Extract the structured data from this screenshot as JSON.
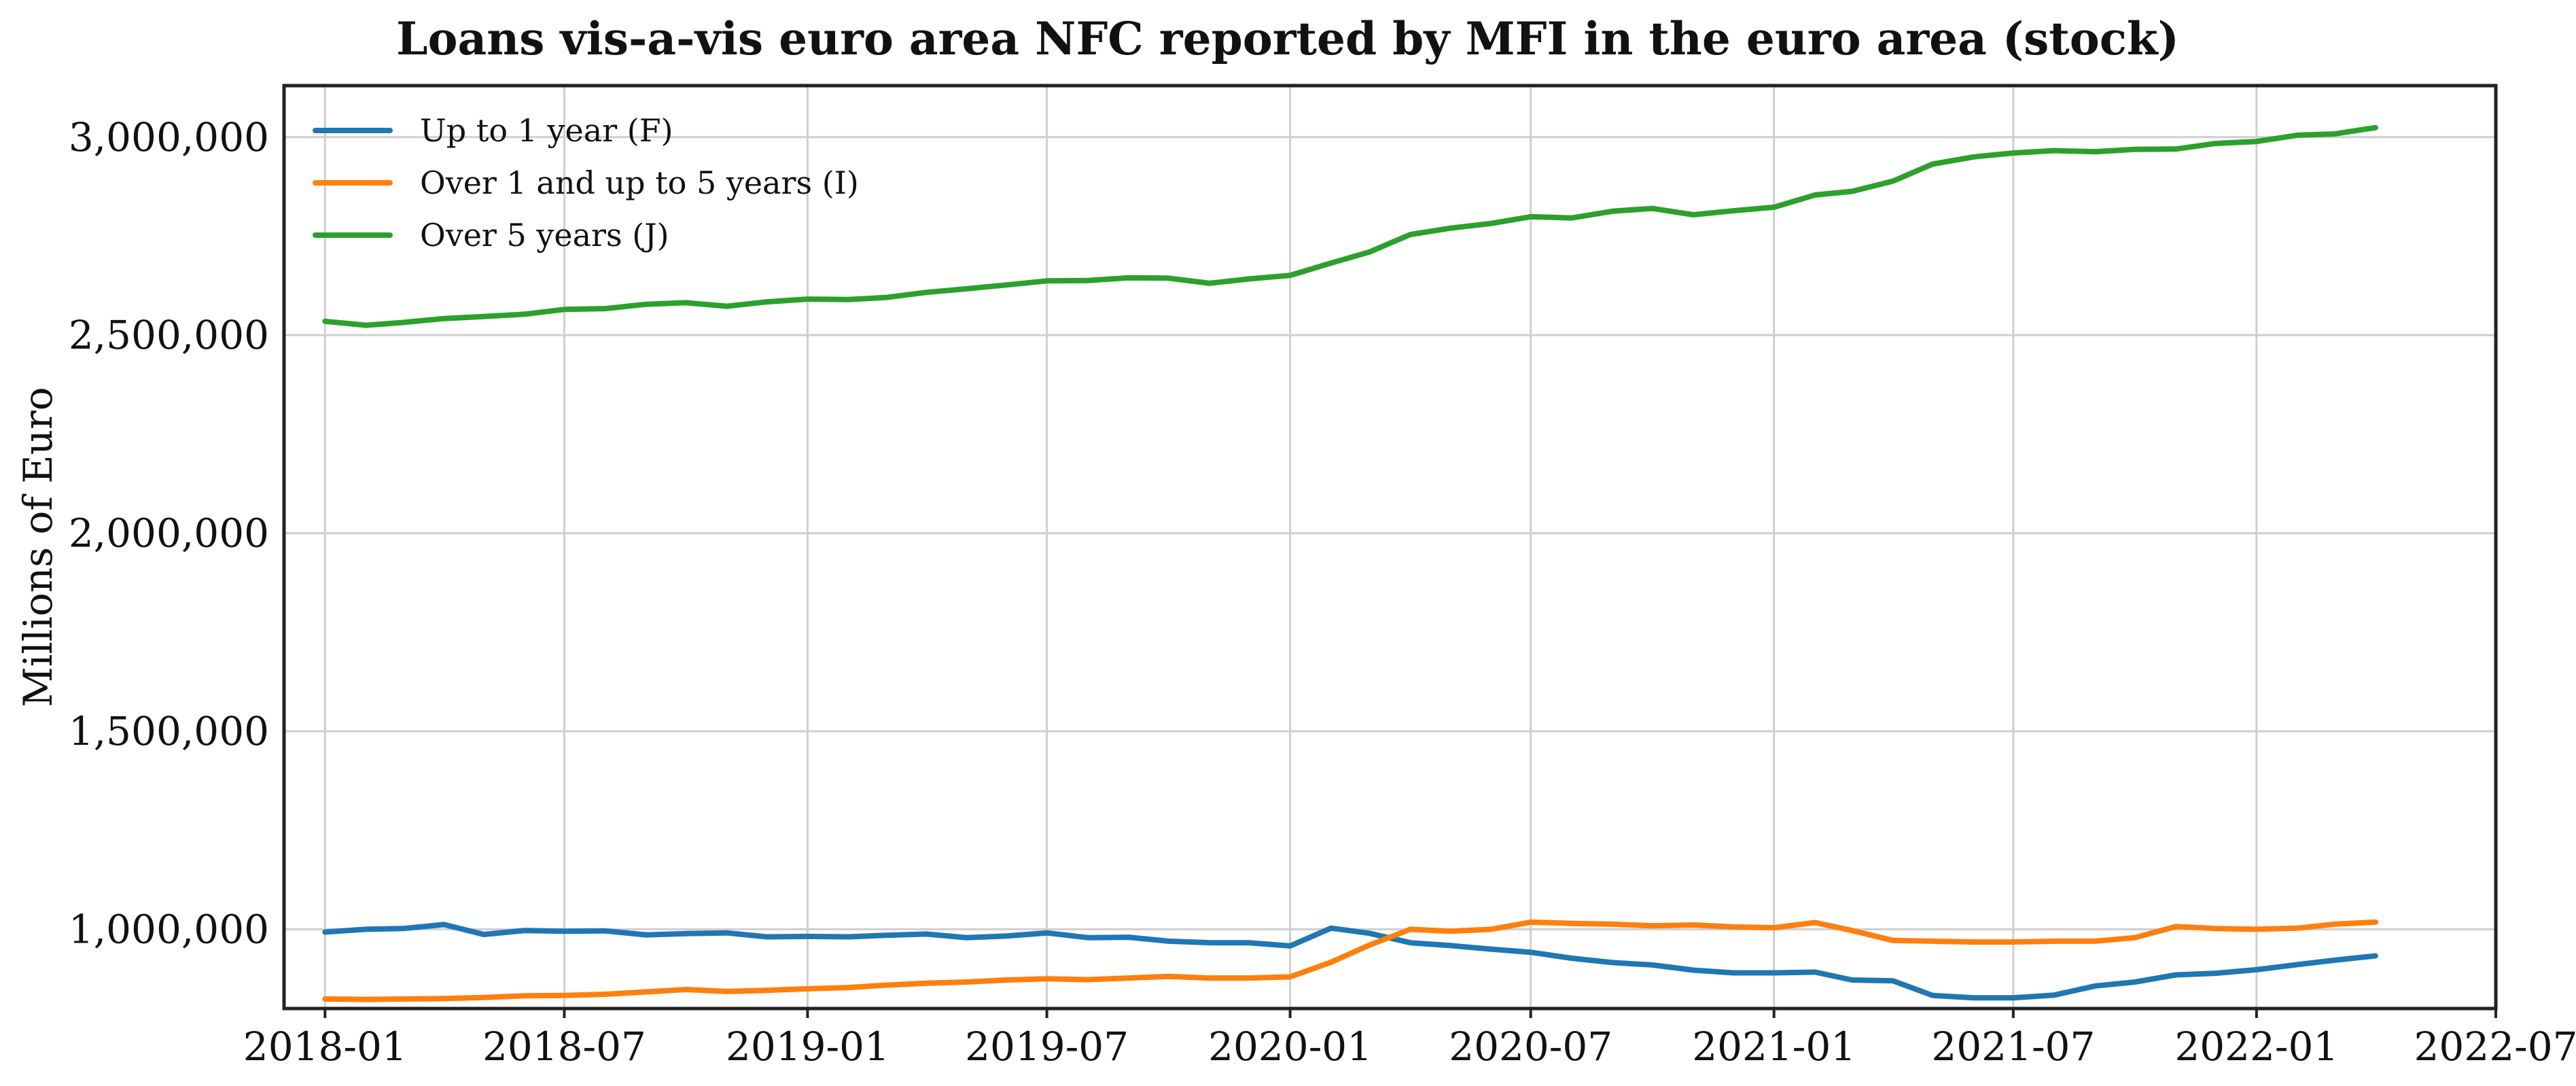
{
  "chart_data": {
    "type": "line",
    "title": "Loans vis-a-vis euro area NFC reported by MFI in the euro area (stock)",
    "xlabel": "",
    "ylabel": "Millions of Euro",
    "xlim": [
      "2017-12-01",
      "2022-07-01"
    ],
    "ylim": [
      800000,
      3130000
    ],
    "x_ticks": [
      "2018-01",
      "2018-07",
      "2019-01",
      "2019-07",
      "2020-01",
      "2020-07",
      "2021-01",
      "2021-07",
      "2022-01",
      "2022-07"
    ],
    "y_ticks": [
      1000000,
      1500000,
      2000000,
      2500000,
      3000000
    ],
    "y_tick_labels": [
      "1,000,000",
      "1,500,000",
      "2,000,000",
      "2,500,000",
      "3,000,000"
    ],
    "grid": true,
    "legend_position": "top-left",
    "x": [
      "2018-01",
      "2018-02",
      "2018-03",
      "2018-04",
      "2018-05",
      "2018-06",
      "2018-07",
      "2018-08",
      "2018-09",
      "2018-10",
      "2018-11",
      "2018-12",
      "2019-01",
      "2019-02",
      "2019-03",
      "2019-04",
      "2019-05",
      "2019-06",
      "2019-07",
      "2019-08",
      "2019-09",
      "2019-10",
      "2019-11",
      "2019-12",
      "2020-01",
      "2020-02",
      "2020-03",
      "2020-04",
      "2020-05",
      "2020-06",
      "2020-07",
      "2020-08",
      "2020-09",
      "2020-10",
      "2020-11",
      "2020-12",
      "2021-01",
      "2021-02",
      "2021-03",
      "2021-04",
      "2021-05",
      "2021-06",
      "2021-07",
      "2021-08",
      "2021-09",
      "2021-10",
      "2021-11",
      "2021-12",
      "2022-01",
      "2022-02",
      "2022-03",
      "2022-04"
    ],
    "series": [
      {
        "name": "Up to 1 year (F)",
        "color": "#1f77b4",
        "values": [
          993000,
          1000000,
          1002000,
          1012000,
          987000,
          997000,
          995000,
          996000,
          986000,
          989000,
          991000,
          981000,
          982000,
          981000,
          985000,
          988000,
          979000,
          983000,
          991000,
          979000,
          980000,
          970000,
          966000,
          966000,
          958000,
          1003000,
          990000,
          966000,
          959000,
          950000,
          942000,
          927000,
          916000,
          910000,
          897000,
          890000,
          890000,
          892000,
          872000,
          870000,
          833000,
          827000,
          827000,
          834000,
          857000,
          867000,
          885000,
          889000,
          898000,
          911000,
          922000,
          933000
        ]
      },
      {
        "name": "Over 1 and up to 5 years (I)",
        "color": "#ff7f0e",
        "values": [
          824000,
          823000,
          824000,
          825000,
          828000,
          832000,
          833000,
          836000,
          842000,
          848000,
          843000,
          846000,
          850000,
          853000,
          859000,
          864000,
          867000,
          872000,
          875000,
          873000,
          877000,
          881000,
          877000,
          877000,
          880000,
          917000,
          960000,
          1000000,
          995000,
          1000000,
          1018000,
          1015000,
          1013000,
          1009000,
          1011000,
          1006000,
          1004000,
          1017000,
          997000,
          972000,
          970000,
          968000,
          968000,
          970000,
          970000,
          979000,
          1007000,
          1002000,
          1000000,
          1003000,
          1013000,
          1018000
        ]
      },
      {
        "name": "Over 5 years (J)",
        "color": "#2ca02c",
        "values": [
          2535000,
          2525000,
          2532000,
          2542000,
          2547000,
          2553000,
          2565000,
          2567000,
          2578000,
          2582000,
          2573000,
          2584000,
          2591000,
          2590000,
          2595000,
          2608000,
          2617000,
          2627000,
          2637000,
          2638000,
          2645000,
          2644000,
          2631000,
          2642000,
          2651000,
          2682000,
          2710000,
          2754000,
          2770000,
          2782000,
          2799000,
          2796000,
          2813000,
          2820000,
          2804000,
          2814000,
          2823000,
          2854000,
          2863000,
          2889000,
          2932000,
          2950000,
          2960000,
          2966000,
          2963000,
          2969000,
          2970000,
          2984000,
          2989000,
          3005000,
          3008000,
          3024000
        ]
      }
    ]
  }
}
